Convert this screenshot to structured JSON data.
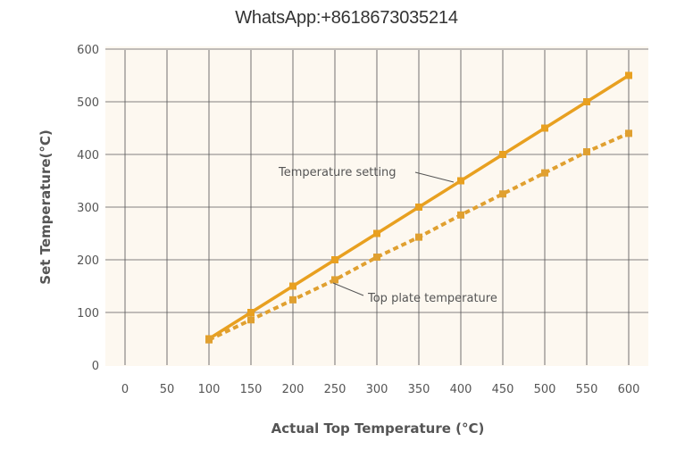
{
  "watermark": "WhatsApp:+8618673035214",
  "chart_data": {
    "type": "line",
    "title": "",
    "xlabel": "Actual Top Temperature (°C)",
    "ylabel": "Set Temperature(°C)",
    "xlim": [
      0,
      600
    ],
    "ylim": [
      0,
      600
    ],
    "x_ticks": [
      0,
      50,
      100,
      150,
      200,
      250,
      300,
      350,
      400,
      450,
      500,
      550,
      600
    ],
    "y_ticks": [
      0,
      100,
      200,
      300,
      400,
      500,
      600
    ],
    "grid": true,
    "legend": "inline annotations",
    "x": [
      100,
      150,
      200,
      250,
      300,
      350,
      400,
      450,
      500,
      550,
      600
    ],
    "series": [
      {
        "name": "Temperature setting",
        "style": "solid",
        "color": "#E8A020",
        "values": [
          50,
          100,
          150,
          200,
          250,
          300,
          350,
          400,
          450,
          500,
          550
        ]
      },
      {
        "name": "Top plate temperature",
        "style": "dotted",
        "color": "#E0A030",
        "values": [
          48,
          86,
          124,
          162,
          205,
          243,
          285,
          325,
          365,
          405,
          440
        ]
      }
    ],
    "annotations": [
      {
        "text": "Temperature setting",
        "points_to_series": 0,
        "near_x": 450
      },
      {
        "text": "Top plate temperature",
        "points_to_series": 1,
        "near_x": 250
      }
    ]
  },
  "colors": {
    "plot_background": "#FDF8F0",
    "grid": "#5A5A5A",
    "text": "#555555"
  }
}
